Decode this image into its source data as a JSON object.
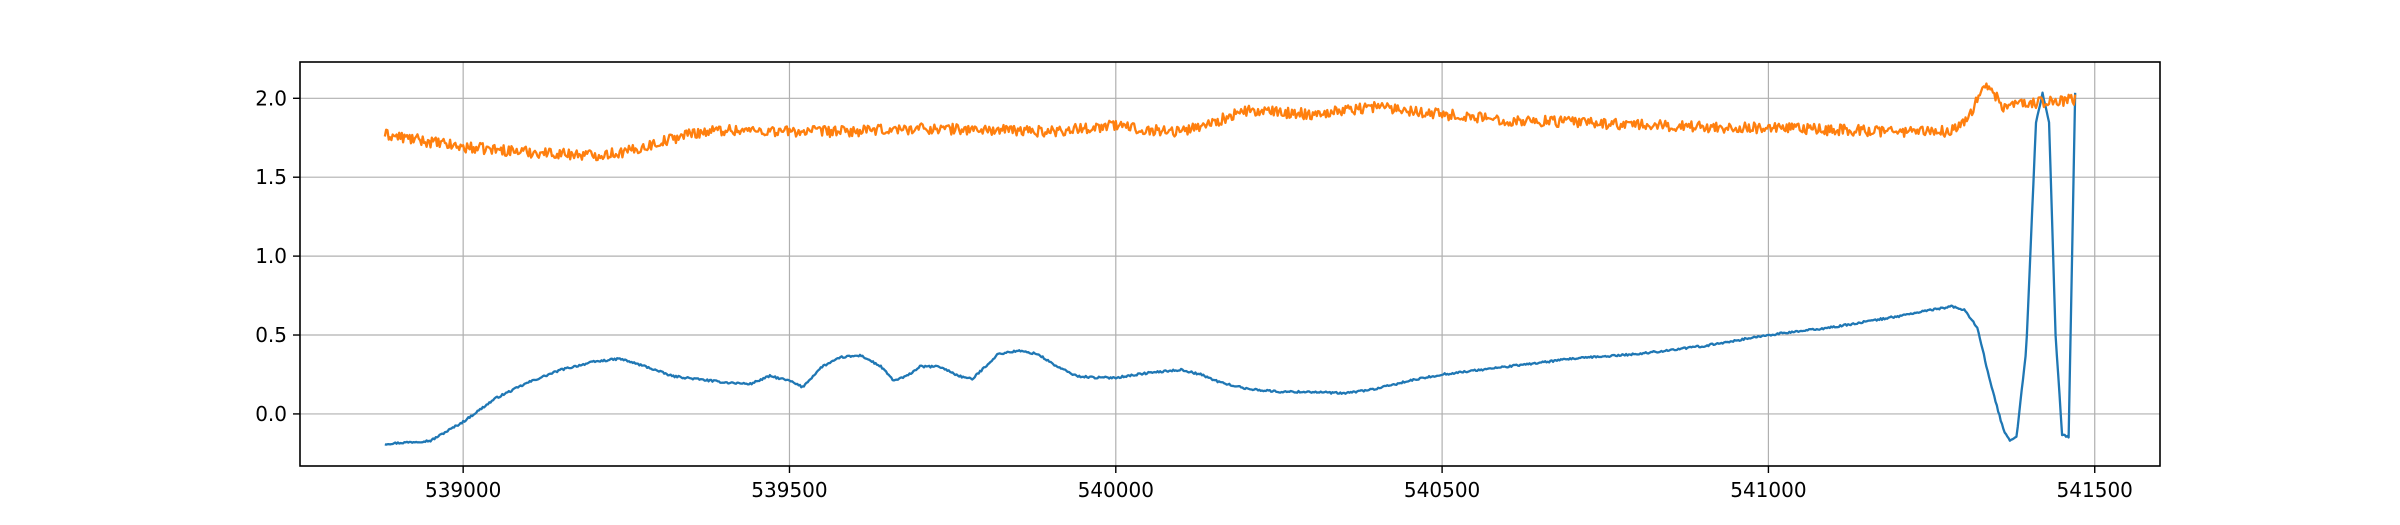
{
  "chart_data": {
    "type": "line",
    "title": "",
    "xlabel": "",
    "ylabel": "",
    "xlim": [
      538750,
      541600
    ],
    "ylim": [
      -0.33,
      2.23
    ],
    "grid": true,
    "legend": "none",
    "x_ticks": [
      539000,
      539500,
      540000,
      540500,
      541000,
      541500
    ],
    "x_tick_labels": [
      "539000",
      "539500",
      "540000",
      "540500",
      "541000",
      "541500"
    ],
    "y_ticks": [
      0.0,
      0.5,
      1.0,
      1.5,
      2.0
    ],
    "y_tick_labels": [
      "0.0",
      "0.5",
      "1.0",
      "1.5",
      "2.0"
    ],
    "series": [
      {
        "color": "#1f77b4",
        "noise": 0.006,
        "x": [
          538880,
          538950,
          539000,
          539050,
          539100,
          539150,
          539200,
          539240,
          539280,
          539320,
          539360,
          539400,
          539440,
          539470,
          539500,
          539520,
          539550,
          539580,
          539610,
          539640,
          539660,
          539680,
          539700,
          539730,
          539760,
          539780,
          539800,
          539820,
          539850,
          539880,
          539910,
          539940,
          539970,
          540000,
          540050,
          540100,
          540130,
          540160,
          540200,
          540250,
          540300,
          540350,
          540400,
          540450,
          540500,
          540600,
          540700,
          540800,
          540900,
          541000,
          541100,
          541200,
          541250,
          541280,
          541300,
          541320,
          541340,
          541360,
          541370,
          541380,
          541395,
          541410,
          541420,
          541430,
          541440,
          541450,
          541460,
          541470
        ],
        "y": [
          -0.19,
          -0.17,
          -0.05,
          0.1,
          0.2,
          0.28,
          0.33,
          0.35,
          0.3,
          0.24,
          0.22,
          0.2,
          0.19,
          0.24,
          0.21,
          0.17,
          0.3,
          0.36,
          0.37,
          0.3,
          0.21,
          0.24,
          0.3,
          0.3,
          0.24,
          0.22,
          0.3,
          0.38,
          0.4,
          0.38,
          0.3,
          0.24,
          0.23,
          0.23,
          0.26,
          0.28,
          0.25,
          0.2,
          0.16,
          0.14,
          0.14,
          0.13,
          0.16,
          0.21,
          0.25,
          0.3,
          0.35,
          0.38,
          0.43,
          0.5,
          0.55,
          0.62,
          0.66,
          0.68,
          0.66,
          0.55,
          0.2,
          -0.1,
          -0.17,
          -0.15,
          0.4,
          1.85,
          2.03,
          1.85,
          0.5,
          -0.13,
          -0.15,
          2.03
        ]
      },
      {
        "color": "#ff7f0e",
        "noise": 0.035,
        "x": [
          538880,
          539000,
          539100,
          539200,
          539250,
          539300,
          539350,
          539400,
          539500,
          539600,
          539700,
          539800,
          539900,
          540000,
          540050,
          540100,
          540150,
          540200,
          540300,
          540400,
          540500,
          540600,
          540700,
          540800,
          540900,
          541000,
          541100,
          541200,
          541280,
          541310,
          541330,
          541340,
          541360,
          541400,
          541470
        ],
        "y": [
          1.77,
          1.69,
          1.66,
          1.64,
          1.66,
          1.72,
          1.78,
          1.8,
          1.79,
          1.79,
          1.81,
          1.8,
          1.79,
          1.83,
          1.8,
          1.79,
          1.85,
          1.92,
          1.9,
          1.95,
          1.9,
          1.86,
          1.85,
          1.83,
          1.82,
          1.81,
          1.8,
          1.79,
          1.79,
          1.9,
          2.08,
          2.05,
          1.95,
          1.97,
          1.99
        ]
      }
    ]
  }
}
